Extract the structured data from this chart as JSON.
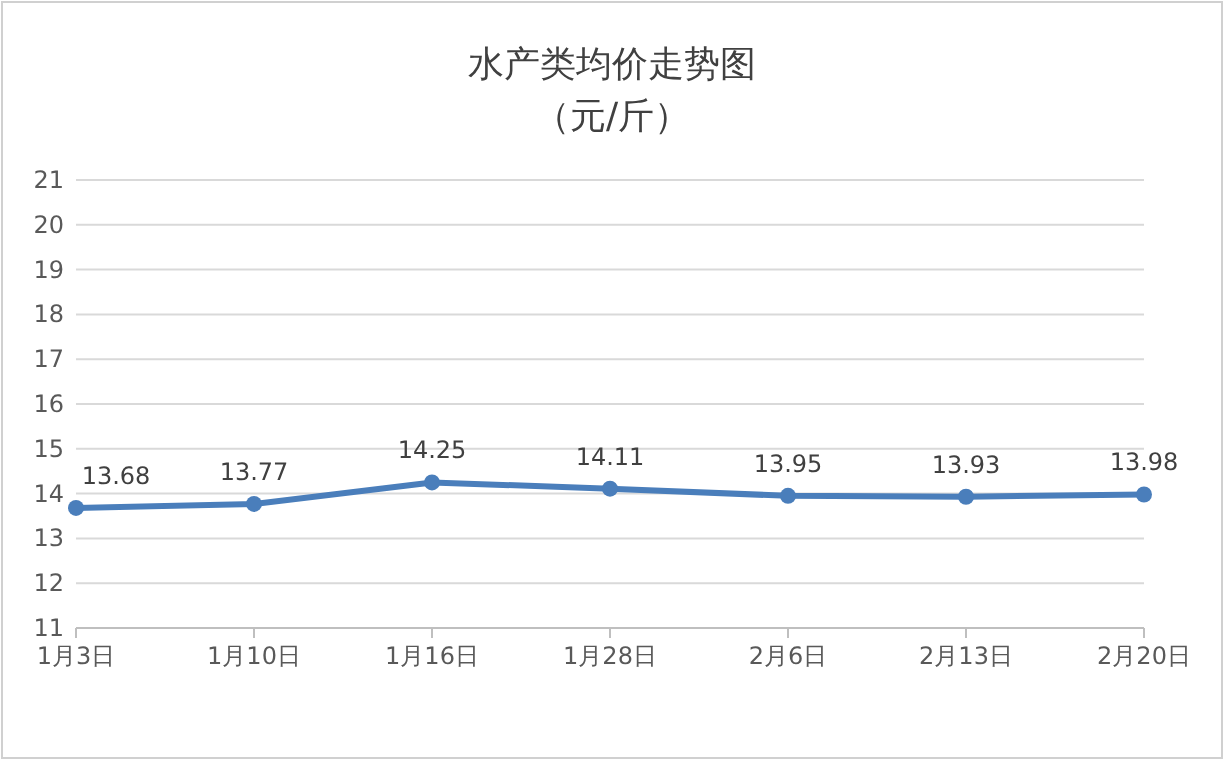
{
  "chart_data": {
    "type": "line",
    "title": "水产类均价走势图",
    "subtitle": "（元/斤）",
    "categories": [
      "1月3日",
      "1月10日",
      "1月16日",
      "1月28日",
      "2月6日",
      "2月13日",
      "2月20日"
    ],
    "values": [
      13.68,
      13.77,
      14.25,
      14.11,
      13.95,
      13.93,
      13.98
    ],
    "color": "#4a7ebb",
    "marker": "circle",
    "data_labels": true,
    "grid": "y",
    "ylim": [
      11,
      21
    ],
    "yticks": [
      11,
      12,
      13,
      14,
      15,
      16,
      17,
      18,
      19,
      20,
      21
    ]
  }
}
